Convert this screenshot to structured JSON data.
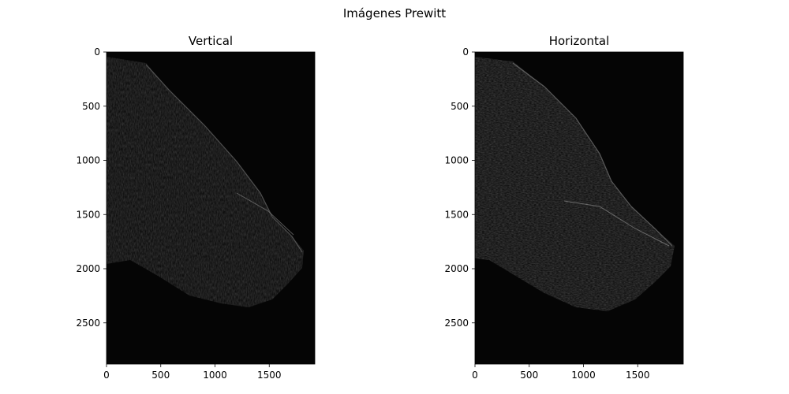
{
  "figure": {
    "suptitle": "Imágenes Prewitt"
  },
  "chart_data": [
    {
      "type": "image",
      "title": "Vertical",
      "xlabel": "",
      "ylabel": "",
      "xlim": [
        0,
        1920
      ],
      "ylim": [
        2880,
        0
      ],
      "xticks": [
        0,
        500,
        1000,
        1500
      ],
      "yticks": [
        0,
        500,
        1000,
        1500,
        2000,
        2500
      ],
      "colormap": "gray",
      "background": "#050505",
      "edge_brightness": 0.35
    },
    {
      "type": "image",
      "title": "Horizontal",
      "xlabel": "",
      "ylabel": "",
      "xlim": [
        0,
        1920
      ],
      "ylim": [
        2880,
        0
      ],
      "xticks": [
        0,
        500,
        1000,
        1500
      ],
      "yticks": [
        0,
        500,
        1000,
        1500,
        2000,
        2500
      ],
      "colormap": "gray",
      "background": "#050505",
      "edge_brightness": 0.45
    }
  ]
}
